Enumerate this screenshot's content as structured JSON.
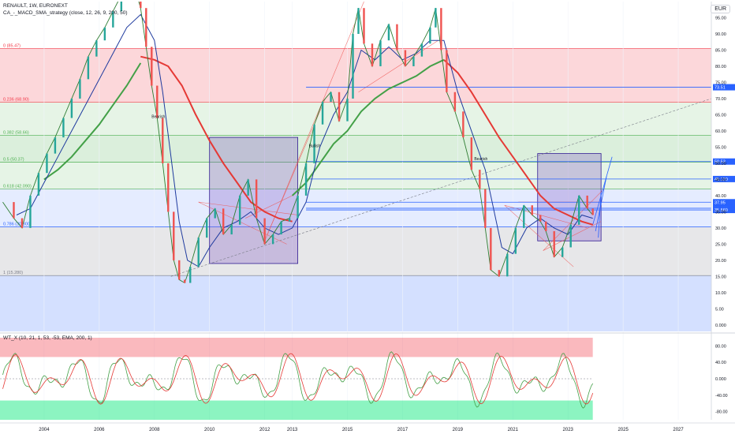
{
  "header": {
    "symbol_line": "RENAULT, 1W, EURONEXT",
    "indicator_line": "CA_-_MACD_SMA_strategy (close, 12, 26, 9, 200, 50)",
    "currency": "EUR",
    "sub_indicator": "WT_X (10, 21, 1, 53, -53, EMA, 200, 1)"
  },
  "chart_data": [
    {
      "type": "line",
      "x_axis_ticks": [
        "2004",
        "2006",
        "2008",
        "2010",
        "2012",
        "2013",
        "2015",
        "2017",
        "2019",
        "2021",
        "2023",
        "2025",
        "2027"
      ],
      "y_axis_ticks": [
        "95.00",
        "90.00",
        "85.00",
        "80.00",
        "75.00",
        "70.00",
        "65.00",
        "60.00",
        "55.00",
        "50.00",
        "45.00",
        "40.00",
        "35.00",
        "30.00",
        "25.00",
        "20.00",
        "15.00",
        "10.00",
        "5.00",
        "0.000"
      ],
      "ylim": [
        -2,
        100
      ],
      "xlim": [
        2002.4,
        2028.2
      ],
      "price": {
        "x": [
          2002.5,
          2002.9,
          2003.2,
          2003.5,
          2003.8,
          2004.1,
          2004.4,
          2004.7,
          2005.0,
          2005.3,
          2005.6,
          2005.9,
          2006.2,
          2006.5,
          2006.8,
          2007.1,
          2007.3,
          2007.5,
          2007.7,
          2007.9,
          2008.1,
          2008.3,
          2008.5,
          2008.7,
          2008.9,
          2009.1,
          2009.3,
          2009.6,
          2009.9,
          2010.2,
          2010.5,
          2010.8,
          2011.1,
          2011.4,
          2011.7,
          2012.0,
          2012.3,
          2012.6,
          2012.9,
          2013.2,
          2013.5,
          2013.8,
          2014.1,
          2014.4,
          2014.7,
          2015.0,
          2015.2,
          2015.4,
          2015.6,
          2015.9,
          2016.2,
          2016.5,
          2016.8,
          2017.1,
          2017.4,
          2017.7,
          2018.0,
          2018.2,
          2018.4,
          2018.6,
          2018.9,
          2019.2,
          2019.5,
          2019.8,
          2020.0,
          2020.2,
          2020.5,
          2020.8,
          2021.1,
          2021.4,
          2021.7,
          2022.0,
          2022.2,
          2022.5,
          2022.8,
          2023.1,
          2023.4,
          2023.7,
          2023.9
        ],
        "y": [
          38,
          33,
          30,
          40,
          47,
          53,
          58,
          64,
          70,
          76,
          83,
          88,
          92,
          97,
          102,
          108,
          104,
          98,
          86,
          74,
          64,
          50,
          35,
          20,
          14,
          13,
          18,
          27,
          33,
          36,
          28,
          31,
          40,
          45,
          33,
          25,
          28,
          32,
          33,
          40,
          50,
          62,
          69,
          72,
          63,
          70,
          90,
          98,
          87,
          80,
          88,
          93,
          85,
          80,
          83,
          87,
          92,
          98,
          85,
          72,
          66,
          58,
          48,
          42,
          30,
          17,
          15,
          22,
          30,
          37,
          34,
          32,
          29,
          21,
          24,
          31,
          40,
          36,
          34
        ]
      },
      "sma_fast": {
        "x": [
          2003.0,
          2003.5,
          2004.0,
          2004.5,
          2005.0,
          2005.5,
          2006.0,
          2006.5,
          2007.0,
          2007.5,
          2008.0,
          2008.3,
          2008.6,
          2008.9,
          2009.2,
          2009.6,
          2010.0,
          2010.5,
          2011.0,
          2011.5,
          2012.0,
          2012.5,
          2013.0,
          2013.5,
          2014.0,
          2014.5,
          2015.0,
          2015.5,
          2016.0,
          2016.5,
          2017.0,
          2017.5,
          2018.0,
          2018.5,
          2019.0,
          2019.5,
          2020.0,
          2020.3,
          2020.6,
          2021.0,
          2021.5,
          2022.0,
          2022.5,
          2023.0,
          2023.5,
          2023.9
        ],
        "y": [
          34,
          36,
          44,
          52,
          60,
          68,
          76,
          84,
          92,
          96,
          88,
          72,
          52,
          32,
          20,
          18,
          24,
          30,
          32,
          35,
          30,
          28,
          30,
          38,
          55,
          65,
          72,
          85,
          82,
          86,
          82,
          84,
          88,
          88,
          72,
          60,
          48,
          36,
          24,
          22,
          30,
          33,
          30,
          28,
          34,
          33
        ]
      },
      "sma_200_red": {
        "x": [
          2007.5,
          2008.0,
          2008.5,
          2009.0,
          2009.5,
          2010.0,
          2010.5,
          2011.0,
          2011.5,
          2012.0,
          2012.5,
          2013.0,
          2018.5,
          2019.0,
          2019.5,
          2020.0,
          2020.5,
          2021.0,
          2021.5,
          2022.0,
          2022.5,
          2023.0,
          2023.5,
          2023.9
        ],
        "y": [
          83,
          82,
          80,
          74,
          65,
          57,
          50,
          44,
          38,
          35,
          33,
          32,
          82,
          78,
          72,
          65,
          58,
          52,
          46,
          40,
          36,
          34,
          32,
          31
        ]
      },
      "sma_50_green": {
        "x": [
          2004.0,
          2004.5,
          2005.0,
          2005.5,
          2006.0,
          2006.5,
          2007.0,
          2007.5,
          2013.0,
          2013.5,
          2014.0,
          2014.5,
          2015.0,
          2015.5,
          2016.0,
          2016.5,
          2017.0,
          2017.5,
          2018.0,
          2018.5
        ],
        "y": [
          45,
          48,
          52,
          57,
          62,
          68,
          74,
          81,
          40,
          44,
          50,
          56,
          60,
          66,
          70,
          73,
          75,
          77,
          80,
          82
        ]
      },
      "fib_levels": [
        {
          "label": "0 (85.47)",
          "value": 85.47,
          "color": "#f23645"
        },
        {
          "label": "0.236 (68.90)",
          "value": 68.9,
          "color": "#f23645"
        },
        {
          "label": "0.382 (58.66)",
          "value": 58.66,
          "color": "#4caf50"
        },
        {
          "label": "0.5 (50.37)",
          "value": 50.37,
          "color": "#4caf50"
        },
        {
          "label": "0.618 (42.090)",
          "value": 42.09,
          "color": "#4caf50"
        },
        {
          "label": "0.786 (30.300)",
          "value": 30.3,
          "color": "#2962ff"
        },
        {
          "label": "1 (15.280)",
          "value": 15.28,
          "color": "#787b86"
        }
      ],
      "h_lines": [
        {
          "value": 73.51,
          "label": "73.51"
        },
        {
          "value": 50.53,
          "label": "50.53"
        },
        {
          "value": 45.12,
          "label": "45.120"
        },
        {
          "value": 37.95,
          "label": "37.95"
        },
        {
          "value": 36.08,
          "label": "36.085"
        },
        {
          "value": 35.56,
          "label": "35.560"
        }
      ],
      "annotations": [
        "Bearish",
        "Bullish",
        "Bearish"
      ]
    },
    {
      "type": "line",
      "name": "WT_X",
      "y_axis_ticks": [
        "80.00",
        "40.00",
        "0.000",
        "-40.00",
        "-80.00"
      ],
      "ylim": [
        -100,
        100
      ],
      "overbought": 53,
      "oversold": -53
    }
  ]
}
